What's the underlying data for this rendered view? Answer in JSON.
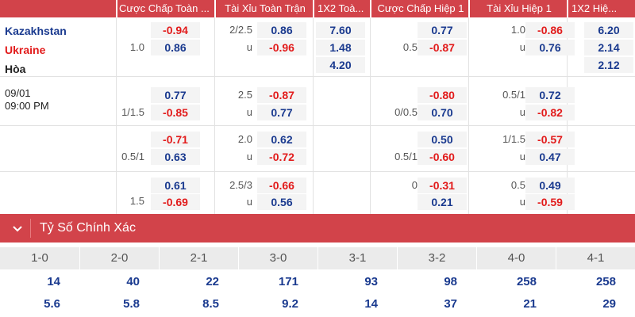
{
  "headers": [
    "Cược Chấp Toàn ...",
    "Tài Xỉu Toàn Trận",
    "1X2 Toà...",
    "Cược Chấp Hiệp 1",
    "Tài Xỉu Hiệp 1",
    "1X2 Hiệ..."
  ],
  "match": {
    "home_team": "Kazakhstan",
    "away_team": "Ukraine",
    "draw_label": "Hòa",
    "date": "09/01",
    "time": "09:00 PM"
  },
  "rows": [
    {
      "ft_hdp": "1.0",
      "ft_hdp_top": "-0.94",
      "ft_hdp_bottom": "0.86",
      "ft_ou": "2/2.5",
      "ft_ou_u": "u",
      "ft_ou_top": "0.86",
      "ft_ou_bottom": "-0.96",
      "ft_1x2": [
        "7.60",
        "1.48",
        "4.20"
      ],
      "h1_hdp": "0.5",
      "h1_hdp_top": "0.77",
      "h1_hdp_bottom": "-0.87",
      "h1_ou": "1.0",
      "h1_ou_u": "u",
      "h1_ou_top": "-0.86",
      "h1_ou_bottom": "0.76",
      "h1_1x2": [
        "6.20",
        "2.14",
        "2.12"
      ]
    },
    {
      "ft_hdp": "1/1.5",
      "ft_hdp_top": "0.77",
      "ft_hdp_bottom": "-0.85",
      "ft_ou": "2.5",
      "ft_ou_u": "u",
      "ft_ou_top": "-0.87",
      "ft_ou_bottom": "0.77",
      "h1_hdp": "0/0.5",
      "h1_hdp_top": "-0.80",
      "h1_hdp_bottom": "0.70",
      "h1_ou": "0.5/1",
      "h1_ou_u": "u",
      "h1_ou_top": "0.72",
      "h1_ou_bottom": "-0.82"
    },
    {
      "ft_hdp": "0.5/1",
      "ft_hdp_top": "-0.71",
      "ft_hdp_bottom": "0.63",
      "ft_ou": "2.0",
      "ft_ou_u": "u",
      "ft_ou_top": "0.62",
      "ft_ou_bottom": "-0.72",
      "h1_hdp": "0.5/1",
      "h1_hdp_top": "0.50",
      "h1_hdp_bottom": "-0.60",
      "h1_ou": "1/1.5",
      "h1_ou_u": "u",
      "h1_ou_top": "-0.57",
      "h1_ou_bottom": "0.47"
    },
    {
      "ft_hdp": "1.5",
      "ft_hdp_top": "0.61",
      "ft_hdp_bottom": "-0.69",
      "ft_ou": "2.5/3",
      "ft_ou_u": "u",
      "ft_ou_top": "-0.66",
      "ft_ou_bottom": "0.56",
      "h1_hdp": "0",
      "h1_hdp_top": "-0.31",
      "h1_hdp_bottom": "0.21",
      "h1_ou": "0.5",
      "h1_ou_u": "u",
      "h1_ou_top": "0.49",
      "h1_ou_bottom": "-0.59"
    }
  ],
  "correct_score": {
    "title": "Tỷ Số Chính Xác",
    "icon": "chevron-down-icon",
    "scores": [
      "1-0",
      "2-0",
      "2-1",
      "3-0",
      "3-1",
      "3-2",
      "4-0",
      "4-1"
    ],
    "row1": [
      "14",
      "40",
      "22",
      "171",
      "93",
      "98",
      "258",
      "258"
    ],
    "row2": [
      "5.6",
      "5.8",
      "8.5",
      "9.2",
      "14",
      "37",
      "21",
      "29"
    ]
  },
  "colors": {
    "accent": "#d2434a",
    "negative": "#e21b1b",
    "positive": "#1a3a8f"
  }
}
